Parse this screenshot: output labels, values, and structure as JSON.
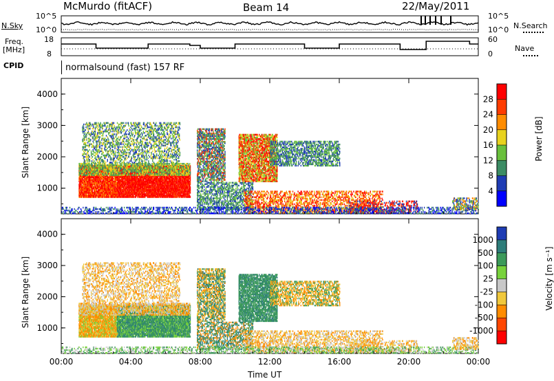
{
  "header": {
    "station": "McMurdo (fitACF)",
    "beam": "Beam 14",
    "date": "22/May/2011"
  },
  "noise_panel": {
    "left_label": "N.Sky",
    "right_label": "N.Search",
    "left_ticks": [
      "10^5",
      "10^0"
    ],
    "right_ticks": [
      "10^5",
      "10^0"
    ]
  },
  "freq_panel": {
    "left_label_line1": "Freq.",
    "left_label_line2": "[MHz]",
    "right_label": "Nave",
    "left_ticks": [
      "18",
      "8"
    ],
    "right_ticks": [
      "60",
      "0"
    ]
  },
  "cpid": {
    "label": "CPID",
    "text": "normalsound (fast) 157 RF"
  },
  "chart_data": [
    {
      "type": "heatmap",
      "title": "",
      "ylabel": "Slant Range [km]",
      "colorbar_label": "Power [dB]",
      "y_ticks": [
        "4000",
        "3000",
        "2000",
        "1000"
      ],
      "ylim": [
        180,
        4500
      ],
      "colorbar_ticks": [
        "28",
        "24",
        "20",
        "16",
        "12",
        "8",
        "4"
      ],
      "colorbar_colors": [
        "#ff0000",
        "#ff3c00",
        "#ff8c00",
        "#e8d21e",
        "#69c03c",
        "#3c8c64",
        "#1e3cb4",
        "#0000ff"
      ]
    },
    {
      "type": "heatmap",
      "title": "",
      "ylabel": "Slant Range [km]",
      "colorbar_label": "Velocity [m s⁻¹]",
      "y_ticks": [
        "4000",
        "3000",
        "2000",
        "1000"
      ],
      "ylim": [
        180,
        4500
      ],
      "colorbar_ticks": [
        "1000",
        "500",
        "100",
        "25",
        "-25",
        "-100",
        "-500",
        "-1000"
      ],
      "colorbar_colors": [
        "#1e3cb4",
        "#2e7d7a",
        "#3c9a5a",
        "#78d23c",
        "#c8c8c8",
        "#f0c83c",
        "#ff8c00",
        "#ff4600",
        "#ff0000"
      ]
    }
  ],
  "x_axis": {
    "ticks": [
      "00:00",
      "04:00",
      "08:00",
      "12:00",
      "16:00",
      "20:00",
      "00:00"
    ],
    "label": "Time UT"
  }
}
